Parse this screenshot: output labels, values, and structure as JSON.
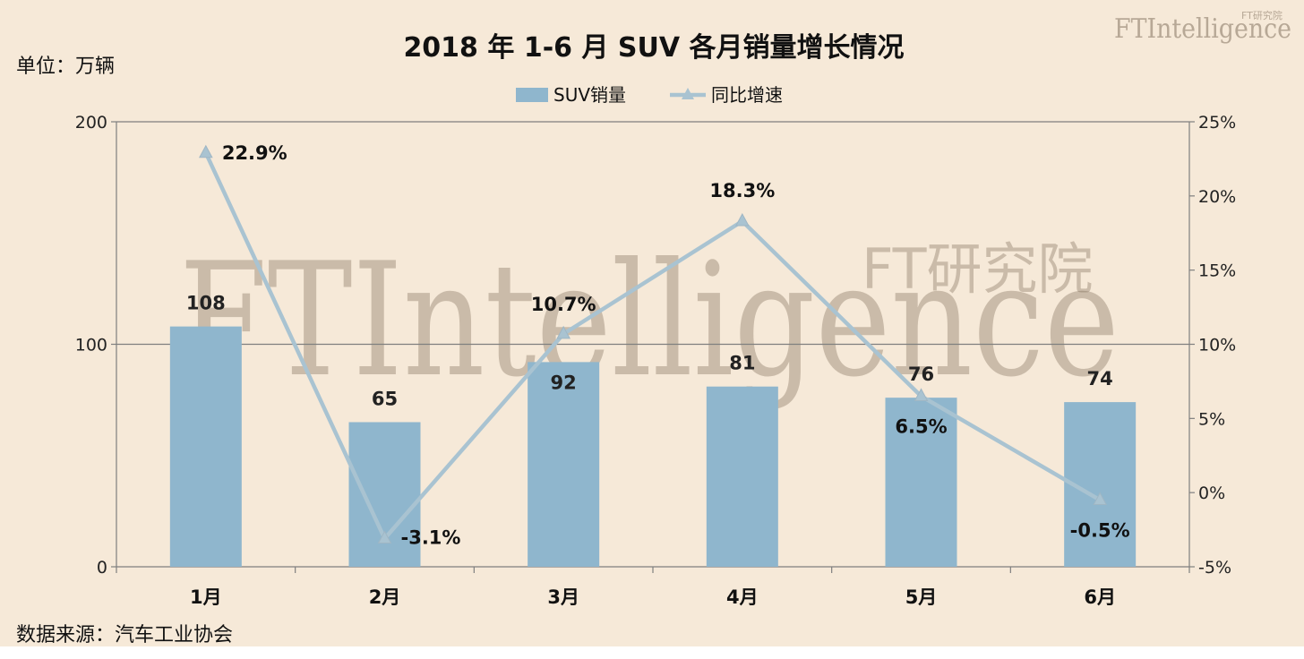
{
  "title": "2018 年 1-6 月 SUV 各月销量增长情况",
  "unit_label": "单位：万辆",
  "source_label": "数据来源：汽车工业协会",
  "watermark": {
    "main": "FTIntelligence",
    "sub": "FT研究院"
  },
  "logo": {
    "main": "FTIntelligence",
    "sub": "FT研究院"
  },
  "colors": {
    "bar": "#8fb6cd",
    "line": "#a9c3d1",
    "axis": "#7f7f7f",
    "background": "#f6e9d8"
  },
  "chart_data": {
    "type": "bar",
    "title": "2018 年 1-6 月 SUV 各月销量增长情况",
    "categories": [
      "1月",
      "2月",
      "3月",
      "4月",
      "5月",
      "6月"
    ],
    "series": [
      {
        "name": "SUV销量",
        "type": "bar",
        "axis": "left",
        "values": [
          108,
          65,
          92,
          81,
          76,
          74
        ],
        "labels": [
          "108",
          "65",
          "92",
          "81",
          "76",
          "74"
        ]
      },
      {
        "name": "同比增速",
        "type": "line",
        "axis": "right",
        "marker": "triangle",
        "values": [
          22.9,
          -3.1,
          10.7,
          18.3,
          6.5,
          -0.5
        ],
        "labels": [
          "22.9%",
          "-3.1%",
          "10.7%",
          "18.3%",
          "6.5%",
          "-0.5%"
        ]
      }
    ],
    "y_left": {
      "min": 0,
      "max": 200,
      "ticks": [
        0,
        100,
        200
      ],
      "tick_labels": [
        "0",
        "100",
        "200"
      ]
    },
    "y_right": {
      "min": -5,
      "max": 25,
      "ticks": [
        -5,
        0,
        5,
        10,
        15,
        20,
        25
      ],
      "tick_labels": [
        "-5%",
        "0%",
        "5%",
        "10%",
        "15%",
        "20%",
        "25%"
      ]
    },
    "legend": {
      "placement": "top-center",
      "entries": [
        "SUV销量",
        "同比增速"
      ]
    },
    "grid": {
      "horizontal": true,
      "vertical": false
    }
  }
}
